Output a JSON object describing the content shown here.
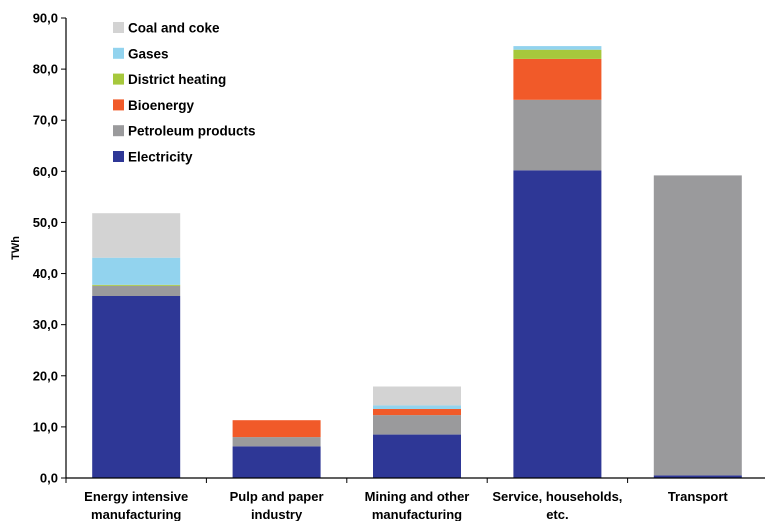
{
  "chart_data": {
    "type": "bar",
    "stacked": true,
    "title": "",
    "xlabel": "",
    "ylabel": "TWh",
    "ylim": [
      0,
      90
    ],
    "yticks": [
      0,
      10,
      20,
      30,
      40,
      50,
      60,
      70,
      80,
      90
    ],
    "ytick_labels": [
      "0,0",
      "10,0",
      "20,0",
      "30,0",
      "40,0",
      "50,0",
      "60,0",
      "70,0",
      "80,0",
      "90,0"
    ],
    "grid": false,
    "legend_position": "top-left",
    "categories": [
      [
        "Energy intensive",
        "manufacturing"
      ],
      [
        "Pulp and paper",
        "industry"
      ],
      [
        "Mining and other",
        "manufacturing"
      ],
      [
        "Service, households,",
        "etc."
      ],
      [
        "Transport"
      ]
    ],
    "series": [
      {
        "name": "Electricity",
        "color": "#2e3796",
        "values": [
          35.6,
          6.2,
          8.5,
          60.2,
          0.5
        ]
      },
      {
        "name": "Petroleum products",
        "color": "#9a9a9c",
        "values": [
          2.0,
          1.8,
          3.8,
          13.8,
          58.7
        ]
      },
      {
        "name": "Bioenergy",
        "color": "#f15a29",
        "values": [
          0.0,
          3.3,
          1.2,
          8.0,
          0.0
        ]
      },
      {
        "name": "District heating",
        "color": "#a6c83c",
        "values": [
          0.2,
          0.0,
          0.0,
          1.8,
          0.0
        ]
      },
      {
        "name": "Gases",
        "color": "#92d3ee",
        "values": [
          5.3,
          0.0,
          0.7,
          0.7,
          0.0
        ]
      },
      {
        "name": "Coal and coke",
        "color": "#d3d3d3",
        "values": [
          8.7,
          0.0,
          3.7,
          0.0,
          0.0
        ]
      }
    ]
  }
}
